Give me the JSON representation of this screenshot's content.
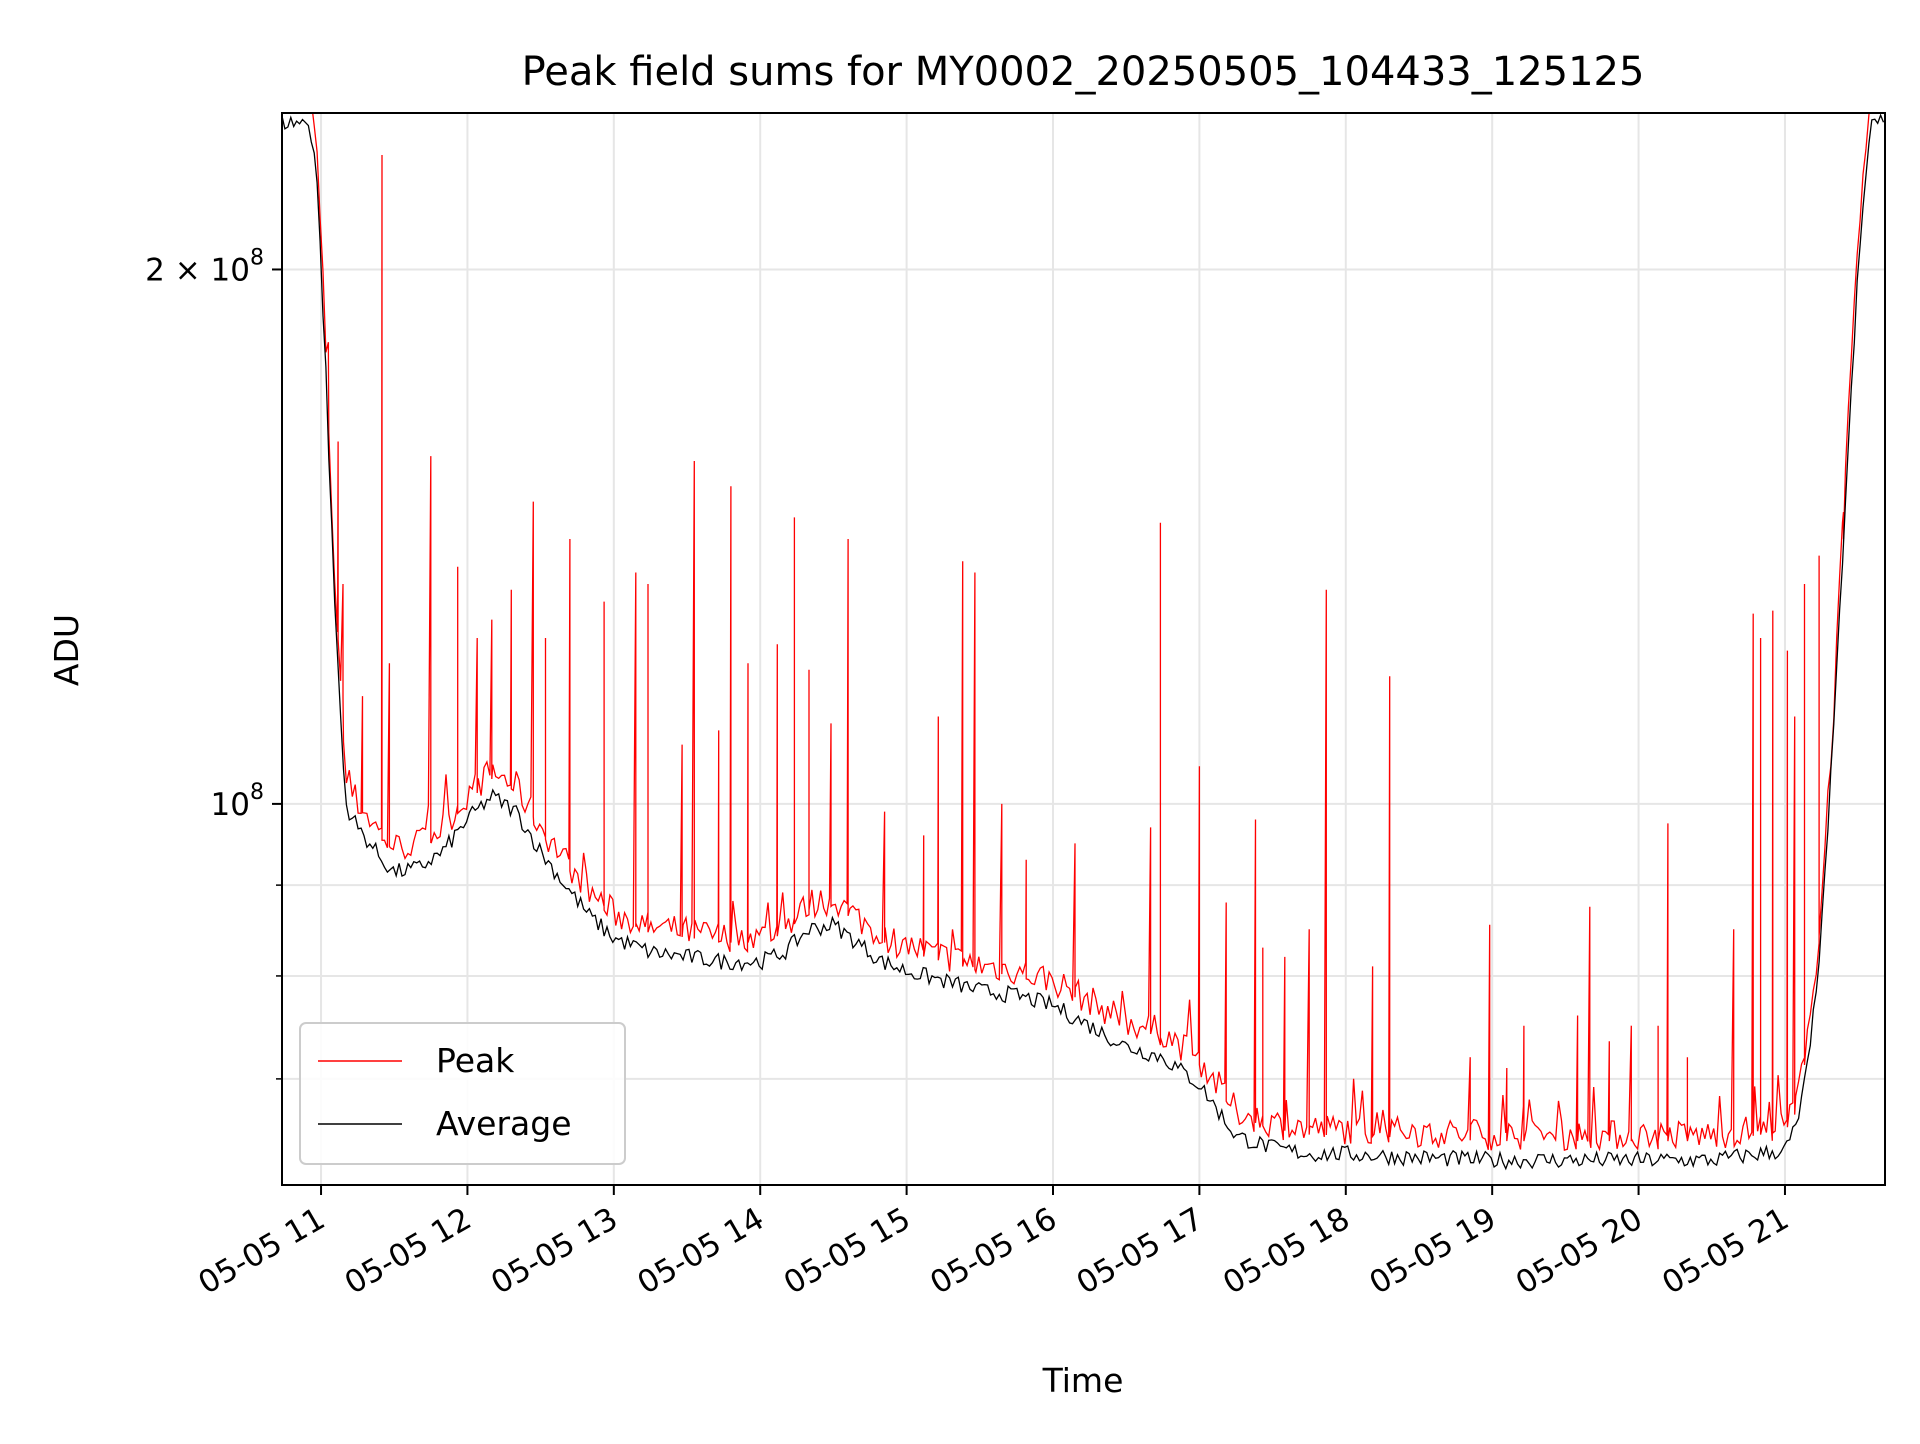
{
  "chart_data": {
    "type": "line",
    "title": "Peak field sums for MY0002_20250505_104433_125125",
    "xlabel": "Time",
    "ylabel": "ADU",
    "y_scale": "log",
    "grid": true,
    "legend_position": "lower-left",
    "xlim": [
      "2025-05-05 10:44",
      "2025-05-05 21:41"
    ],
    "ylim": [
      61000000,
      245000000
    ],
    "x_ticks": [
      {
        "x": "2025-05-05 11:00",
        "label": "05-05 11"
      },
      {
        "x": "2025-05-05 12:00",
        "label": "05-05 12"
      },
      {
        "x": "2025-05-05 13:00",
        "label": "05-05 13"
      },
      {
        "x": "2025-05-05 14:00",
        "label": "05-05 14"
      },
      {
        "x": "2025-05-05 15:00",
        "label": "05-05 15"
      },
      {
        "x": "2025-05-05 16:00",
        "label": "05-05 16"
      },
      {
        "x": "2025-05-05 17:00",
        "label": "05-05 17"
      },
      {
        "x": "2025-05-05 18:00",
        "label": "05-05 18"
      },
      {
        "x": "2025-05-05 19:00",
        "label": "05-05 19"
      },
      {
        "x": "2025-05-05 20:00",
        "label": "05-05 20"
      },
      {
        "x": "2025-05-05 21:00",
        "label": "05-05 21"
      }
    ],
    "y_major_ticks": [
      {
        "y": 100000000,
        "label_base": "10",
        "label_exp": "8"
      },
      {
        "y": 200000000,
        "label_base": "2 × 10",
        "label_exp": "8"
      }
    ],
    "y_minor_ticks": [
      70000000,
      80000000,
      90000000
    ],
    "series": [
      {
        "name": "Average",
        "color": "#000000",
        "points": [
          [
            "2025-05-05 10:44",
            242000000
          ],
          [
            "2025-05-05 10:55",
            242000000
          ],
          [
            "2025-05-05 10:58",
            230000000
          ],
          [
            "2025-05-05 11:02",
            175000000
          ],
          [
            "2025-05-05 11:05",
            135000000
          ],
          [
            "2025-05-05 11:08",
            112000000
          ],
          [
            "2025-05-05 11:10",
            100000000
          ],
          [
            "2025-05-05 11:15",
            97000000
          ],
          [
            "2025-05-05 11:20",
            95000000
          ],
          [
            "2025-05-05 11:25",
            93000000
          ],
          [
            "2025-05-05 11:30",
            91500000
          ],
          [
            "2025-05-05 11:40",
            92000000
          ],
          [
            "2025-05-05 11:50",
            94000000
          ],
          [
            "2025-05-05 12:00",
            98000000
          ],
          [
            "2025-05-05 12:10",
            101000000
          ],
          [
            "2025-05-05 12:20",
            99000000
          ],
          [
            "2025-05-05 12:30",
            94000000
          ],
          [
            "2025-05-05 12:40",
            90000000
          ],
          [
            "2025-05-05 12:50",
            86500000
          ],
          [
            "2025-05-05 13:00",
            84000000
          ],
          [
            "2025-05-05 13:15",
            82500000
          ],
          [
            "2025-05-05 13:30",
            82000000
          ],
          [
            "2025-05-05 13:45",
            81500000
          ],
          [
            "2025-05-05 14:00",
            81500000
          ],
          [
            "2025-05-05 14:10",
            82500000
          ],
          [
            "2025-05-05 14:20",
            85000000
          ],
          [
            "2025-05-05 14:30",
            85500000
          ],
          [
            "2025-05-05 14:40",
            83500000
          ],
          [
            "2025-05-05 14:50",
            81500000
          ],
          [
            "2025-05-05 15:00",
            80500000
          ],
          [
            "2025-05-05 15:15",
            79500000
          ],
          [
            "2025-05-05 15:30",
            78500000
          ],
          [
            "2025-05-05 15:45",
            78000000
          ],
          [
            "2025-05-05 16:00",
            77000000
          ],
          [
            "2025-05-05 16:15",
            75000000
          ],
          [
            "2025-05-05 16:30",
            73000000
          ],
          [
            "2025-05-05 16:45",
            72000000
          ],
          [
            "2025-05-05 17:00",
            69500000
          ],
          [
            "2025-05-05 17:15",
            65000000
          ],
          [
            "2025-05-05 17:30",
            64000000
          ],
          [
            "2025-05-05 17:45",
            63500000
          ],
          [
            "2025-05-05 18:00",
            63500000
          ],
          [
            "2025-05-05 18:30",
            63200000
          ],
          [
            "2025-05-05 19:00",
            63000000
          ],
          [
            "2025-05-05 19:30",
            63000000
          ],
          [
            "2025-05-05 20:00",
            63000000
          ],
          [
            "2025-05-05 20:30",
            63000000
          ],
          [
            "2025-05-05 21:00",
            63800000
          ],
          [
            "2025-05-05 21:05",
            66000000
          ],
          [
            "2025-05-05 21:10",
            72000000
          ],
          [
            "2025-05-05 21:15",
            85000000
          ],
          [
            "2025-05-05 21:20",
            110000000
          ],
          [
            "2025-05-05 21:25",
            150000000
          ],
          [
            "2025-05-05 21:30",
            200000000
          ],
          [
            "2025-05-05 21:35",
            242000000
          ],
          [
            "2025-05-05 21:41",
            242000000
          ]
        ]
      },
      {
        "name": "Peak",
        "color": "#ff0000",
        "baseline_offset": 1.025,
        "spikes": [
          [
            "2025-05-05 11:03",
            182000000
          ],
          [
            "2025-05-05 11:07",
            160000000
          ],
          [
            "2025-05-05 11:09",
            133000000
          ],
          [
            "2025-05-05 11:17",
            115000000
          ],
          [
            "2025-05-05 11:25",
            232000000
          ],
          [
            "2025-05-05 11:28",
            120000000
          ],
          [
            "2025-05-05 11:45",
            157000000
          ],
          [
            "2025-05-05 11:56",
            136000000
          ],
          [
            "2025-05-05 12:04",
            124000000
          ],
          [
            "2025-05-05 12:10",
            127000000
          ],
          [
            "2025-05-05 12:18",
            132000000
          ],
          [
            "2025-05-05 12:27",
            148000000
          ],
          [
            "2025-05-05 12:32",
            124000000
          ],
          [
            "2025-05-05 12:42",
            141000000
          ],
          [
            "2025-05-05 12:56",
            130000000
          ],
          [
            "2025-05-05 13:09",
            135000000
          ],
          [
            "2025-05-05 13:14",
            133000000
          ],
          [
            "2025-05-05 13:28",
            108000000
          ],
          [
            "2025-05-05 13:33",
            156000000
          ],
          [
            "2025-05-05 13:43",
            110000000
          ],
          [
            "2025-05-05 13:48",
            151000000
          ],
          [
            "2025-05-05 13:55",
            120000000
          ],
          [
            "2025-05-05 14:07",
            123000000
          ],
          [
            "2025-05-05 14:14",
            145000000
          ],
          [
            "2025-05-05 14:20",
            119000000
          ],
          [
            "2025-05-05 14:29",
            111000000
          ],
          [
            "2025-05-05 14:36",
            141000000
          ],
          [
            "2025-05-05 14:51",
            99000000
          ],
          [
            "2025-05-05 15:07",
            96000000
          ],
          [
            "2025-05-05 15:13",
            112000000
          ],
          [
            "2025-05-05 15:23",
            137000000
          ],
          [
            "2025-05-05 15:28",
            135000000
          ],
          [
            "2025-05-05 15:39",
            100000000
          ],
          [
            "2025-05-05 15:49",
            93000000
          ],
          [
            "2025-05-05 16:09",
            95000000
          ],
          [
            "2025-05-05 16:40",
            97000000
          ],
          [
            "2025-05-05 16:44",
            144000000
          ],
          [
            "2025-05-05 17:00",
            105000000
          ],
          [
            "2025-05-05 17:11",
            88000000
          ],
          [
            "2025-05-05 17:23",
            98000000
          ],
          [
            "2025-05-05 17:26",
            83000000
          ],
          [
            "2025-05-05 17:35",
            82000000
          ],
          [
            "2025-05-05 17:45",
            85000000
          ],
          [
            "2025-05-05 17:52",
            132000000
          ],
          [
            "2025-05-05 18:11",
            81000000
          ],
          [
            "2025-05-05 18:18",
            118000000
          ],
          [
            "2025-05-05 18:51",
            72000000
          ],
          [
            "2025-05-05 18:59",
            85500000
          ],
          [
            "2025-05-05 19:06",
            71000000
          ],
          [
            "2025-05-05 19:13",
            75000000
          ],
          [
            "2025-05-05 19:35",
            76000000
          ],
          [
            "2025-05-05 19:40",
            87500000
          ],
          [
            "2025-05-05 19:48",
            73500000
          ],
          [
            "2025-05-05 19:57",
            75000000
          ],
          [
            "2025-05-05 20:08",
            75000000
          ],
          [
            "2025-05-05 20:12",
            97500000
          ],
          [
            "2025-05-05 20:20",
            72000000
          ],
          [
            "2025-05-05 20:39",
            85000000
          ],
          [
            "2025-05-05 20:47",
            128000000
          ],
          [
            "2025-05-05 20:50",
            124000000
          ],
          [
            "2025-05-05 20:55",
            128500000
          ],
          [
            "2025-05-05 21:01",
            122000000
          ],
          [
            "2025-05-05 21:04",
            112000000
          ],
          [
            "2025-05-05 21:08",
            133000000
          ],
          [
            "2025-05-05 21:14",
            138000000
          ],
          [
            "2025-05-05 21:24",
            146000000
          ]
        ]
      }
    ]
  },
  "legend": {
    "entries": [
      {
        "name": "Peak",
        "color": "#ff0000"
      },
      {
        "name": "Average",
        "color": "#000000"
      }
    ]
  }
}
